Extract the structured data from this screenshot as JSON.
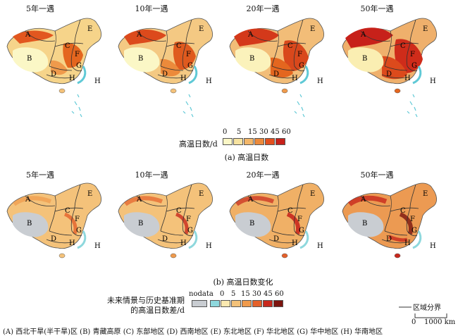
{
  "top_titles": [
    "5年一遇",
    "10年一遇",
    "20年一遇",
    "50年一遇"
  ],
  "bottom_titles": [
    "5年一遇",
    "10年一遇",
    "20年一遇",
    "50年一遇"
  ],
  "region_letters": [
    "A",
    "B",
    "C",
    "D",
    "E",
    "F",
    "G",
    "H"
  ],
  "legend_top": {
    "title": "高温日数/d",
    "ticks": [
      "0",
      "5",
      "15",
      "30",
      "45",
      "60"
    ],
    "colors": [
      "#fbf7c6",
      "#f7e3a0",
      "#f3b76a",
      "#ec8a3b",
      "#e3501e",
      "#c7211a"
    ]
  },
  "caption_top": "(a) 高温日数",
  "caption_bottom": "(b) 高温日数变化",
  "legend_bottom": {
    "title_line1": "未来情景与历史基准期",
    "title_line2": "的高温日数差/d",
    "nodata": "nodata",
    "ticks": [
      "0",
      "5",
      "15",
      "30",
      "45",
      "60"
    ],
    "colors": [
      "#8ed8dd",
      "#fbe9b0",
      "#f4c27a",
      "#ef9a4c",
      "#e4602a",
      "#c8281d",
      "#7c140f"
    ]
  },
  "boundary_legend": "区域分界",
  "scale_bar": {
    "start": "0",
    "end": "1000 km"
  },
  "region_key": "(A) 西北干旱(半干旱)区 (B) 青藏高原 (C) 东部地区 (D) 西南地区 (E) 东北地区 (F) 华北地区 (G) 华中地区 (H) 华南地区"
}
